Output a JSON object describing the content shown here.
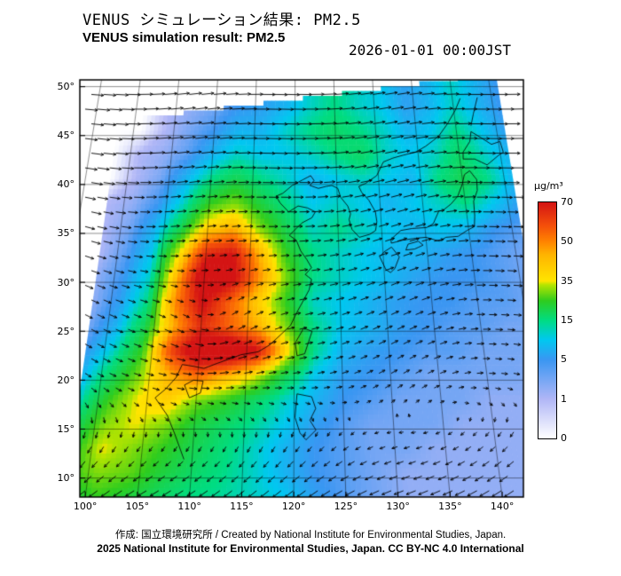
{
  "header": {
    "title_ja": "VENUS シミュレーション結果: PM2.5",
    "title_en": "VENUS simulation result: PM2.5",
    "datetime": "2026-01-01 00:00JST"
  },
  "footer": {
    "credit_line": "作成:  国立環境研究所 / Created by National Institute for Environmental Studies, Japan.",
    "copyright_line": "2025 National Institute for Environmental Studies, Japan. CC BY-NC 4.0 International"
  },
  "axes": {
    "x_tick_labels": [
      "100°",
      "105°",
      "110°",
      "115°",
      "120°",
      "125°",
      "130°",
      "135°",
      "140°"
    ],
    "x_tick_values": [
      100,
      105,
      110,
      115,
      120,
      125,
      130,
      135,
      140
    ],
    "y_tick_labels": [
      "10°",
      "15°",
      "20°",
      "25°",
      "30°",
      "35°",
      "40°",
      "45°",
      "50°"
    ],
    "y_tick_values": [
      10,
      15,
      20,
      25,
      30,
      35,
      40,
      45,
      50
    ]
  },
  "colorbar": {
    "unit": "µg/m³",
    "tick_labels": [
      "0",
      "1",
      "5",
      "15",
      "35",
      "50",
      "70"
    ],
    "tick_values": [
      0,
      1,
      5,
      15,
      35,
      50,
      70
    ]
  },
  "chart_data": {
    "type": "heatmap",
    "title": "VENUS simulation result: PM2.5",
    "title_ja": "VENUS シミュレーション結果: PM2.5",
    "datetime": "2026-01-01 00:00JST",
    "units": "µg/m³",
    "xlim": [
      100,
      140
    ],
    "ylim": [
      10,
      50
    ],
    "legend_position": "right",
    "grid_on": true,
    "levels": [
      0,
      1,
      5,
      15,
      35,
      50,
      70
    ],
    "colormap_stops": [
      [
        0,
        "#ffffff"
      ],
      [
        1,
        "#b0b6f6"
      ],
      [
        5,
        "#3a96f2"
      ],
      [
        10,
        "#00c8f0"
      ],
      [
        15,
        "#00dc82"
      ],
      [
        25,
        "#2ecc1e"
      ],
      [
        33,
        "#b4e400"
      ],
      [
        35,
        "#ffe400"
      ],
      [
        45,
        "#ffb400"
      ],
      [
        50,
        "#ff8400"
      ],
      [
        58,
        "#f4500a"
      ],
      [
        70,
        "#d41414"
      ]
    ],
    "grid": {
      "lons": [
        98,
        101,
        104,
        107,
        110,
        113,
        116,
        119,
        122,
        125,
        128,
        131,
        134,
        137,
        140,
        143,
        146
      ],
      "lats": [
        8,
        10.5,
        13,
        15.5,
        18,
        20.5,
        23,
        25.5,
        28,
        30.5,
        33,
        35.5,
        38,
        40.5,
        43,
        45.5,
        48
      ],
      "values_ugm3": [
        [
          20,
          25,
          22,
          18,
          15,
          14,
          12,
          10,
          6,
          4,
          3,
          2,
          2,
          2,
          2,
          2,
          2
        ],
        [
          25,
          30,
          28,
          22,
          18,
          15,
          12,
          8,
          5,
          4,
          3,
          2,
          2,
          2,
          2,
          2,
          2
        ],
        [
          22,
          35,
          30,
          25,
          20,
          16,
          12,
          8,
          5,
          4,
          3,
          3,
          2,
          2,
          2,
          2,
          2
        ],
        [
          18,
          30,
          35,
          30,
          22,
          18,
          14,
          10,
          6,
          4,
          3,
          3,
          3,
          2,
          2,
          2,
          2
        ],
        [
          12,
          25,
          35,
          40,
          30,
          25,
          18,
          12,
          8,
          5,
          4,
          3,
          3,
          3,
          2,
          2,
          2
        ],
        [
          8,
          18,
          30,
          45,
          55,
          45,
          35,
          20,
          10,
          6,
          5,
          4,
          3,
          3,
          3,
          3,
          2
        ],
        [
          5,
          12,
          25,
          60,
          82,
          85,
          72,
          40,
          15,
          8,
          6,
          5,
          4,
          4,
          3,
          3,
          3
        ],
        [
          3,
          8,
          20,
          45,
          65,
          55,
          45,
          30,
          15,
          10,
          8,
          6,
          5,
          4,
          4,
          3,
          3
        ],
        [
          2,
          6,
          15,
          50,
          72,
          55,
          40,
          25,
          12,
          10,
          8,
          6,
          5,
          5,
          4,
          4,
          3
        ],
        [
          2,
          5,
          12,
          45,
          80,
          75,
          50,
          30,
          15,
          12,
          10,
          8,
          6,
          5,
          5,
          4,
          3
        ],
        [
          1,
          4,
          10,
          35,
          65,
          70,
          45,
          25,
          15,
          12,
          10,
          8,
          8,
          6,
          5,
          4,
          3
        ],
        [
          1,
          3,
          8,
          20,
          40,
          45,
          30,
          20,
          12,
          15,
          12,
          10,
          8,
          10,
          8,
          5,
          4
        ],
        [
          1,
          2,
          5,
          12,
          25,
          30,
          22,
          15,
          10,
          12,
          10,
          8,
          10,
          12,
          15,
          10,
          6
        ],
        [
          0,
          1,
          3,
          8,
          15,
          20,
          15,
          12,
          8,
          10,
          12,
          10,
          8,
          15,
          20,
          15,
          8
        ],
        [
          0,
          1,
          2,
          4,
          8,
          12,
          10,
          10,
          12,
          15,
          18,
          12,
          10,
          12,
          18,
          12,
          8
        ],
        [
          0,
          0,
          1,
          3,
          5,
          8,
          8,
          12,
          15,
          18,
          15,
          12,
          8,
          10,
          15,
          10,
          6
        ],
        [
          0,
          0,
          1,
          2,
          3,
          5,
          6,
          8,
          12,
          15,
          12,
          10,
          6,
          8,
          12,
          8,
          5
        ]
      ]
    },
    "coastlines": [
      [
        [
          109.2,
          11.9
        ],
        [
          108.1,
          14.5
        ],
        [
          107.2,
          16.4
        ],
        [
          105.8,
          18.2
        ],
        [
          106.8,
          19.1
        ],
        [
          107.8,
          20.3
        ],
        [
          108.3,
          21.6
        ],
        [
          109.6,
          21.4
        ],
        [
          110.6,
          21.2
        ],
        [
          111.9,
          21.7
        ],
        [
          113.3,
          22.2
        ],
        [
          114.4,
          22.6
        ],
        [
          116.2,
          22.9
        ],
        [
          117.4,
          23.6
        ],
        [
          118.5,
          24.6
        ],
        [
          119.6,
          25.6
        ],
        [
          120.2,
          26.8
        ],
        [
          120.9,
          28.0
        ],
        [
          121.6,
          29.2
        ],
        [
          121.9,
          30.3
        ],
        [
          121.2,
          30.8
        ],
        [
          121.9,
          31.5
        ],
        [
          121.4,
          32.3
        ],
        [
          120.7,
          33.2
        ],
        [
          120.2,
          34.3
        ],
        [
          119.4,
          34.8
        ],
        [
          120.3,
          35.6
        ],
        [
          120.9,
          36.1
        ],
        [
          122.0,
          36.6
        ],
        [
          122.4,
          37.2
        ],
        [
          121.5,
          37.6
        ],
        [
          120.4,
          37.8
        ],
        [
          119.3,
          37.2
        ],
        [
          118.3,
          38.1
        ],
        [
          117.8,
          38.8
        ],
        [
          118.6,
          39.1
        ],
        [
          119.7,
          39.9
        ],
        [
          121.0,
          40.5
        ],
        [
          121.9,
          40.9
        ],
        [
          122.3,
          40.4
        ],
        [
          121.8,
          39.9
        ],
        [
          122.8,
          39.6
        ],
        [
          123.7,
          39.8
        ],
        [
          124.4,
          39.9
        ],
        [
          125.1,
          39.6
        ],
        [
          125.4,
          38.7
        ],
        [
          126.2,
          37.8
        ],
        [
          126.5,
          37.0
        ],
        [
          126.3,
          36.4
        ],
        [
          126.6,
          35.4
        ],
        [
          127.4,
          34.6
        ],
        [
          128.6,
          34.9
        ],
        [
          129.3,
          35.3
        ],
        [
          129.5,
          36.2
        ],
        [
          129.4,
          37.2
        ],
        [
          128.7,
          38.4
        ],
        [
          127.9,
          39.2
        ],
        [
          127.6,
          39.8
        ],
        [
          128.4,
          40.1
        ],
        [
          129.8,
          40.9
        ],
        [
          130.7,
          42.3
        ],
        [
          131.9,
          42.7
        ],
        [
          133.2,
          43.0
        ],
        [
          134.7,
          43.3
        ],
        [
          136.0,
          43.9
        ],
        [
          137.7,
          44.9
        ],
        [
          139.0,
          46.2
        ],
        [
          140.2,
          47.6
        ],
        [
          141.0,
          48.8
        ]
      ],
      [
        [
          130.1,
          33.1
        ],
        [
          129.6,
          32.6
        ],
        [
          130.2,
          31.3
        ],
        [
          130.7,
          31.0
        ],
        [
          131.2,
          31.4
        ],
        [
          131.8,
          32.6
        ],
        [
          131.0,
          33.6
        ],
        [
          130.1,
          33.1
        ]
      ],
      [
        [
          131.0,
          34.0
        ],
        [
          132.3,
          34.3
        ],
        [
          133.8,
          34.5
        ],
        [
          135.0,
          34.6
        ],
        [
          136.5,
          34.2
        ],
        [
          137.3,
          34.6
        ],
        [
          138.7,
          34.7
        ],
        [
          139.8,
          35.3
        ],
        [
          140.7,
          35.7
        ],
        [
          140.9,
          36.8
        ],
        [
          141.0,
          38.3
        ],
        [
          141.6,
          39.4
        ],
        [
          141.7,
          40.5
        ],
        [
          141.0,
          41.4
        ],
        [
          140.3,
          41.0
        ],
        [
          139.9,
          40.0
        ],
        [
          139.2,
          38.8
        ],
        [
          138.3,
          38.0
        ],
        [
          137.2,
          37.3
        ],
        [
          136.8,
          37.3
        ],
        [
          136.0,
          36.0
        ],
        [
          135.2,
          35.6
        ],
        [
          133.5,
          35.5
        ],
        [
          132.2,
          35.3
        ],
        [
          131.0,
          34.4
        ],
        [
          131.0,
          34.0
        ]
      ],
      [
        [
          132.6,
          33.3
        ],
        [
          133.6,
          33.4
        ],
        [
          134.6,
          33.8
        ],
        [
          134.1,
          34.2
        ],
        [
          132.9,
          33.9
        ],
        [
          132.6,
          33.3
        ]
      ],
      [
        [
          140.4,
          42.6
        ],
        [
          141.8,
          42.6
        ],
        [
          143.2,
          42.0
        ],
        [
          144.8,
          43.0
        ],
        [
          145.4,
          43.3
        ],
        [
          145.2,
          44.4
        ],
        [
          144.1,
          44.1
        ],
        [
          142.9,
          44.8
        ],
        [
          141.8,
          45.4
        ],
        [
          141.5,
          44.4
        ],
        [
          140.5,
          43.3
        ],
        [
          140.4,
          42.6
        ]
      ],
      [
        [
          121.0,
          25.3
        ],
        [
          121.9,
          25.0
        ],
        [
          121.1,
          22.7
        ],
        [
          120.3,
          22.5
        ],
        [
          120.1,
          23.8
        ],
        [
          121.0,
          25.3
        ]
      ],
      [
        [
          108.7,
          19.5
        ],
        [
          109.6,
          20.0
        ],
        [
          110.6,
          19.9
        ],
        [
          110.4,
          18.7
        ],
        [
          109.3,
          18.2
        ],
        [
          108.7,
          19.5
        ]
      ],
      [
        [
          120.3,
          18.6
        ],
        [
          121.8,
          18.3
        ],
        [
          122.2,
          17.1
        ],
        [
          121.6,
          15.9
        ],
        [
          122.2,
          14.9
        ],
        [
          121.2,
          13.9
        ],
        [
          120.6,
          14.6
        ],
        [
          120.1,
          16.2
        ],
        [
          120.3,
          18.6
        ]
      ],
      [
        [
          141.9,
          46.0
        ],
        [
          142.4,
          47.2
        ],
        [
          143.2,
          48.9
        ]
      ]
    ],
    "wind": {
      "shown": true,
      "style": "black surface-wind arrows over whole domain"
    }
  }
}
